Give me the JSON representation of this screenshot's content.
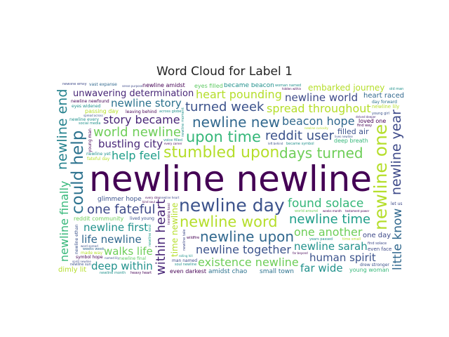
{
  "chart_data": {
    "type": "wordcloud",
    "title": "Word Cloud for Label 1",
    "palette": [
      "#440154",
      "#3b528b",
      "#21918c",
      "#5ec962",
      "#b5de2b",
      "#fde725"
    ],
    "words": [
      {
        "text": "newline newline",
        "weight": 1.0,
        "color": "#440154",
        "orientation": "horizontal"
      },
      {
        "text": "newline day",
        "weight": 0.46,
        "color": "#3b528b",
        "orientation": "horizontal"
      },
      {
        "text": "newline one",
        "weight": 0.46,
        "color": "#b5de2b",
        "orientation": "vertical"
      },
      {
        "text": "could help",
        "weight": 0.42,
        "color": "#2c728e",
        "orientation": "vertical"
      },
      {
        "text": "stumbled upon",
        "weight": 0.4,
        "color": "#b5de2b",
        "orientation": "horizontal"
      },
      {
        "text": "upon time",
        "weight": 0.36,
        "color": "#35b779",
        "orientation": "horizontal"
      },
      {
        "text": "newline word",
        "weight": 0.36,
        "color": "#b5de2b",
        "orientation": "horizontal"
      },
      {
        "text": "newline new",
        "weight": 0.34,
        "color": "#31688e",
        "orientation": "horizontal"
      },
      {
        "text": "newline upon",
        "weight": 0.34,
        "color": "#31688e",
        "orientation": "horizontal"
      },
      {
        "text": "days turned",
        "weight": 0.34,
        "color": "#6ece58",
        "orientation": "horizontal"
      },
      {
        "text": "newline year",
        "weight": 0.32,
        "color": "#3e4a89",
        "orientation": "vertical"
      },
      {
        "text": "newline end",
        "weight": 0.32,
        "color": "#26828e",
        "orientation": "vertical"
      },
      {
        "text": "within heart",
        "weight": 0.3,
        "color": "#482677",
        "orientation": "vertical"
      },
      {
        "text": "reddit user",
        "weight": 0.3,
        "color": "#3b528b",
        "orientation": "horizontal"
      },
      {
        "text": "newline time",
        "weight": 0.3,
        "color": "#1f9e89",
        "orientation": "horizontal"
      },
      {
        "text": "world newline",
        "weight": 0.3,
        "color": "#6ece58",
        "orientation": "horizontal"
      },
      {
        "text": "turned week",
        "weight": 0.3,
        "color": "#3b528b",
        "orientation": "horizontal"
      },
      {
        "text": "one fateful",
        "weight": 0.3,
        "color": "#3e4a89",
        "orientation": "horizontal"
      },
      {
        "text": "found solace",
        "weight": 0.28,
        "color": "#35b779",
        "orientation": "horizontal"
      },
      {
        "text": "little know",
        "weight": 0.28,
        "color": "#31688e",
        "orientation": "vertical"
      },
      {
        "text": "newline finally",
        "weight": 0.26,
        "color": "#35b779",
        "orientation": "vertical"
      },
      {
        "text": "time newline",
        "weight": 0.24,
        "color": "#b5de2b",
        "orientation": "vertical"
      },
      {
        "text": "newline together",
        "weight": 0.25,
        "color": "#3b528b",
        "orientation": "horizontal"
      },
      {
        "text": "existence newline",
        "weight": 0.25,
        "color": "#6ece58",
        "orientation": "horizontal"
      },
      {
        "text": "story became",
        "weight": 0.25,
        "color": "#482677",
        "orientation": "horizontal"
      },
      {
        "text": "help feel",
        "weight": 0.25,
        "color": "#1f9e89",
        "orientation": "horizontal"
      },
      {
        "text": "heart pounding",
        "weight": 0.25,
        "color": "#b5de2b",
        "orientation": "horizontal"
      },
      {
        "text": "beacon hope",
        "weight": 0.25,
        "color": "#31688e",
        "orientation": "horizontal"
      },
      {
        "text": "one another",
        "weight": 0.25,
        "color": "#6ece58",
        "orientation": "horizontal"
      },
      {
        "text": "spread throughout",
        "weight": 0.25,
        "color": "#b5de2b",
        "orientation": "horizontal"
      },
      {
        "text": "unwavering determination",
        "weight": 0.25,
        "color": "#482677",
        "orientation": "horizontal"
      },
      {
        "text": "newline sarah",
        "weight": 0.23,
        "color": "#21918c",
        "orientation": "horizontal"
      },
      {
        "text": "newline first",
        "weight": 0.23,
        "color": "#21918c",
        "orientation": "horizontal"
      },
      {
        "text": "newline story",
        "weight": 0.23,
        "color": "#2c728e",
        "orientation": "horizontal"
      },
      {
        "text": "life newline",
        "weight": 0.23,
        "color": "#31688e",
        "orientation": "horizontal"
      },
      {
        "text": "walks life",
        "weight": 0.23,
        "color": "#6ece58",
        "orientation": "horizontal"
      },
      {
        "text": "newline world",
        "weight": 0.23,
        "color": "#3e4a89",
        "orientation": "horizontal"
      },
      {
        "text": "bustling city",
        "weight": 0.23,
        "color": "#482677",
        "orientation": "horizontal"
      },
      {
        "text": "human spirit",
        "weight": 0.23,
        "color": "#3b528b",
        "orientation": "horizontal"
      },
      {
        "text": "glimmer hope",
        "weight": 0.22,
        "color": "#3b528b",
        "orientation": "horizontal"
      },
      {
        "text": "far wide",
        "weight": 0.23,
        "color": "#21918c",
        "orientation": "horizontal"
      },
      {
        "text": "deep within",
        "weight": 0.23,
        "color": "#21918c",
        "orientation": "horizontal"
      },
      {
        "text": "embarked journey",
        "weight": 0.23,
        "color": "#b5de2b",
        "orientation": "horizontal"
      },
      {
        "text": "deep breath",
        "weight": 0.23,
        "color": "#35b779",
        "orientation": "horizontal"
      },
      {
        "text": "reddit community",
        "weight": 0.23,
        "color": "#6ece58",
        "orientation": "horizontal"
      },
      {
        "text": "amidst chao",
        "weight": 0.22,
        "color": "#2c728e",
        "orientation": "horizontal"
      },
      {
        "text": "became beacon",
        "weight": 0.22,
        "color": "#21918c",
        "orientation": "horizontal"
      },
      {
        "text": "filled air",
        "weight": 0.22,
        "color": "#3b528b",
        "orientation": "horizontal"
      },
      {
        "text": "small town",
        "weight": 0.22,
        "color": "#2c728e",
        "orientation": "horizontal"
      },
      {
        "text": "newline amidst",
        "weight": 0.2,
        "color": "#440154",
        "orientation": "horizontal"
      },
      {
        "text": "heart raced",
        "weight": 0.2,
        "color": "#31688e",
        "orientation": "horizontal"
      },
      {
        "text": "newline newfound",
        "weight": 0.2,
        "color": "#440154",
        "orientation": "horizontal"
      },
      {
        "text": "leaving behind",
        "weight": 0.2,
        "color": "#440154",
        "orientation": "horizontal"
      },
      {
        "text": "eyes filled",
        "weight": 0.2,
        "color": "#5ec962",
        "orientation": "horizontal"
      },
      {
        "text": "passing day",
        "weight": 0.2,
        "color": "#b5de2b",
        "orientation": "horizontal"
      },
      {
        "text": "man named",
        "weight": 0.2,
        "color": "#3e4a89",
        "orientation": "horizontal"
      },
      {
        "text": "young woman",
        "weight": 0.2,
        "color": "#35b779",
        "orientation": "horizontal"
      },
      {
        "text": "became symbol",
        "weight": 0.2,
        "color": "#21918c",
        "orientation": "horizontal"
      },
      {
        "text": "even darkest",
        "weight": 0.2,
        "color": "#440154",
        "orientation": "horizontal"
      },
      {
        "text": "day forward",
        "weight": 0.2,
        "color": "#2c728e",
        "orientation": "horizontal"
      },
      {
        "text": "dimly lit",
        "weight": 0.2,
        "color": "#b5de2b",
        "orientation": "horizontal"
      },
      {
        "text": "newline every",
        "weight": 0.2,
        "color": "#21918c",
        "orientation": "horizontal"
      },
      {
        "text": "fateful day",
        "weight": 0.2,
        "color": "#b5de2b",
        "orientation": "horizontal"
      },
      {
        "text": "loved one",
        "weight": 0.2,
        "color": "#440154",
        "orientation": "horizontal"
      },
      {
        "text": "vast expanse",
        "weight": 0.2,
        "color": "#31688e",
        "orientation": "horizontal"
      },
      {
        "text": "years passed",
        "weight": 0.2,
        "color": "#21918c",
        "orientation": "horizontal"
      },
      {
        "text": "lived young",
        "weight": 0.2,
        "color": "#3b528b",
        "orientation": "horizontal"
      },
      {
        "text": "one day",
        "weight": 0.2,
        "color": "#3e4a89",
        "orientation": "horizontal"
      },
      {
        "text": "eyes widened",
        "weight": 0.18,
        "color": "#21918c",
        "orientation": "horizontal"
      },
      {
        "text": "newline emily",
        "weight": 0.16,
        "color": "#3e4a89",
        "orientation": "horizontal"
      },
      {
        "text": "symbol hope",
        "weight": 0.16,
        "color": "#440154",
        "orientation": "horizontal"
      },
      {
        "text": "drew stronger",
        "weight": 0.16,
        "color": "#3b528b",
        "orientation": "horizontal"
      },
      {
        "text": "newline final",
        "weight": 0.16,
        "color": "#5ec962",
        "orientation": "horizontal"
      },
      {
        "text": "woman named",
        "weight": 0.15,
        "color": "#21918c",
        "orientation": "horizontal"
      },
      {
        "text": "world around",
        "weight": 0.16,
        "color": "#6ece58",
        "orientation": "horizontal"
      },
      {
        "text": "newline sun",
        "weight": 0.16,
        "color": "#3b528b",
        "orientation": "horizontal"
      },
      {
        "text": "testament power",
        "weight": 0.15,
        "color": "#440154",
        "orientation": "horizontal"
      },
      {
        "text": "time small",
        "weight": 0.14,
        "color": "#b5de2b",
        "orientation": "horizontal"
      },
      {
        "text": "newline ethan",
        "weight": 0.18,
        "color": "#3b528b",
        "orientation": "vertical"
      },
      {
        "text": "newline tale",
        "weight": 0.16,
        "color": "#3e4a89",
        "orientation": "vertical"
      },
      {
        "text": "trembling hand",
        "weight": 0.17,
        "color": "#440154",
        "orientation": "vertical"
      },
      {
        "text": "newline moment",
        "weight": 0.14,
        "color": "#21918c",
        "orientation": "vertical"
      },
      {
        "text": "newline soul",
        "weight": 0.14,
        "color": "#1f9e89",
        "orientation": "vertical"
      },
      {
        "text": "newline yet",
        "weight": 0.12,
        "color": "#21918c",
        "orientation": "horizontal"
      },
      {
        "text": "soul newline",
        "weight": 0.12,
        "color": "#21918c",
        "orientation": "horizontal"
      },
      {
        "text": "newline lily",
        "weight": 0.16,
        "color": "#b5de2b",
        "orientation": "horizontal"
      },
      {
        "text": "word spread",
        "weight": 0.11,
        "color": "#3b528b",
        "orientation": "horizontal"
      },
      {
        "text": "weeks month",
        "weight": 0.11,
        "color": "#440154",
        "orientation": "horizontal"
      },
      {
        "text": "even face",
        "weight": 0.1,
        "color": "#3e4a89",
        "orientation": "horizontal"
      },
      {
        "text": "find solace",
        "weight": 0.12,
        "color": "#3e4a89",
        "orientation": "horizontal"
      },
      {
        "text": "voice filled",
        "weight": 0.12,
        "color": "#21918c",
        "orientation": "horizontal"
      },
      {
        "text": "newline month",
        "weight": 0.12,
        "color": "#21918c",
        "orientation": "horizontal"
      },
      {
        "text": "weeks week",
        "weight": 0.12,
        "color": "#31688e",
        "orientation": "horizontal"
      },
      {
        "text": "delved deeper",
        "weight": 0.1,
        "color": "#482677",
        "orientation": "horizontal"
      },
      {
        "text": "newline curiosity",
        "weight": 0.11,
        "color": "#b5de2b",
        "orientation": "horizontal"
      },
      {
        "text": "spread across",
        "weight": 0.1,
        "color": "#3b528b",
        "orientation": "horizontal"
      },
      {
        "text": "social media",
        "weight": 0.1,
        "color": "#21918c",
        "orientation": "horizontal"
      },
      {
        "text": "hidden within",
        "weight": 0.1,
        "color": "#440154",
        "orientation": "horizontal"
      },
      {
        "text": "newline heart",
        "weight": 0.11,
        "color": "#3e4a89",
        "orientation": "horizontal"
      },
      {
        "text": "every corner",
        "weight": 0.1,
        "color": "#440154",
        "orientation": "horizontal"
      },
      {
        "text": "young girl",
        "weight": 0.1,
        "color": "#3b528b",
        "orientation": "horizontal"
      },
      {
        "text": "far beyond",
        "weight": 0.09,
        "color": "#440154",
        "orientation": "horizontal"
      },
      {
        "text": "left behind",
        "weight": 0.09,
        "color": "#3b528b",
        "orientation": "horizontal"
      },
      {
        "text": "every step",
        "weight": 0.09,
        "color": "#440154",
        "orientation": "horizontal"
      },
      {
        "text": "newline suddenly",
        "weight": 0.09,
        "color": "#3b528b",
        "orientation": "horizontal"
      },
      {
        "text": "forever etched",
        "weight": 0.08,
        "color": "#482677",
        "orientation": "horizontal"
      },
      {
        "text": "time passed",
        "weight": 0.09,
        "color": "#3e4a89",
        "orientation": "horizontal"
      },
      {
        "text": "old man",
        "weight": 0.09,
        "color": "#21918c",
        "orientation": "horizontal"
      },
      {
        "text": "named lily",
        "weight": 0.09,
        "color": "#3b528b",
        "orientation": "horizontal"
      },
      {
        "text": "newline night",
        "weight": 0.09,
        "color": "#21918c",
        "orientation": "horizontal"
      },
      {
        "text": "heavy heart",
        "weight": 0.08,
        "color": "#440154",
        "orientation": "horizontal"
      },
      {
        "text": "sense purpose",
        "weight": 0.1,
        "color": "#3e4a89",
        "orientation": "horizontal"
      },
      {
        "text": "lives newline",
        "weight": 0.1,
        "color": "#3b528b",
        "orientation": "horizontal"
      },
      {
        "text": "newline reddit",
        "weight": 0.08,
        "color": "#21918c",
        "orientation": "horizontal"
      },
      {
        "text": "across globe",
        "weight": 0.08,
        "color": "#21918c",
        "orientation": "horizontal"
      },
      {
        "text": "forever changed",
        "weight": 0.09,
        "color": "#21918c",
        "orientation": "horizontal"
      },
      {
        "text": "wildfire",
        "weight": 0.08,
        "color": "#440154",
        "orientation": "horizontal"
      },
      {
        "text": "let us",
        "weight": 0.08,
        "color": "#3e4a89",
        "orientation": "horizontal"
      },
      {
        "text": "made way",
        "weight": 0.08,
        "color": "#b5de2b",
        "orientation": "horizontal"
      },
      {
        "text": "young man",
        "weight": 0.09,
        "color": "#440154",
        "orientation": "vertical"
      },
      {
        "text": "indomitable spirit",
        "weight": 0.08,
        "color": "#440154",
        "orientation": "vertical"
      },
      {
        "text": "humanity newline",
        "weight": 0.07,
        "color": "#35b779",
        "orientation": "horizontal"
      },
      {
        "text": "hope newline",
        "weight": 0.07,
        "color": "#3b528b",
        "orientation": "horizontal"
      },
      {
        "text": "spread far",
        "weight": 0.07,
        "color": "#3b528b",
        "orientation": "horizontal"
      },
      {
        "text": "settled amidst",
        "weight": 0.06,
        "color": "#3b528b",
        "orientation": "horizontal"
      },
      {
        "text": "fellow reddit",
        "weight": 0.06,
        "color": "#3b528b",
        "orientation": "horizontal"
      },
      {
        "text": "town nestled",
        "weight": 0.06,
        "color": "#3b528b",
        "orientation": "horizontal"
      },
      {
        "text": "curiosity piqued",
        "weight": 0.06,
        "color": "#35b779",
        "orientation": "horizontal"
      },
      {
        "text": "girl named",
        "weight": 0.05,
        "color": "#440154",
        "orientation": "horizontal"
      },
      {
        "text": "rolling hill",
        "weight": 0.05,
        "color": "#21918c",
        "orientation": "horizontal"
      },
      {
        "text": "band rand",
        "weight": 0.05,
        "color": "#21918c",
        "orientation": "horizontal"
      },
      {
        "text": "find way",
        "weight": 0.06,
        "color": "#440154",
        "orientation": "horizontal"
      },
      {
        "text": "one evening",
        "weight": 0.05,
        "color": "#3b528b",
        "orientation": "horizontal"
      },
      {
        "text": "spirit newline",
        "weight": 0.05,
        "color": "#3e4a89",
        "orientation": "horizontal"
      },
      {
        "text": "kind soul",
        "weight": 0.05,
        "color": "#440154",
        "orientation": "horizontal"
      }
    ]
  }
}
